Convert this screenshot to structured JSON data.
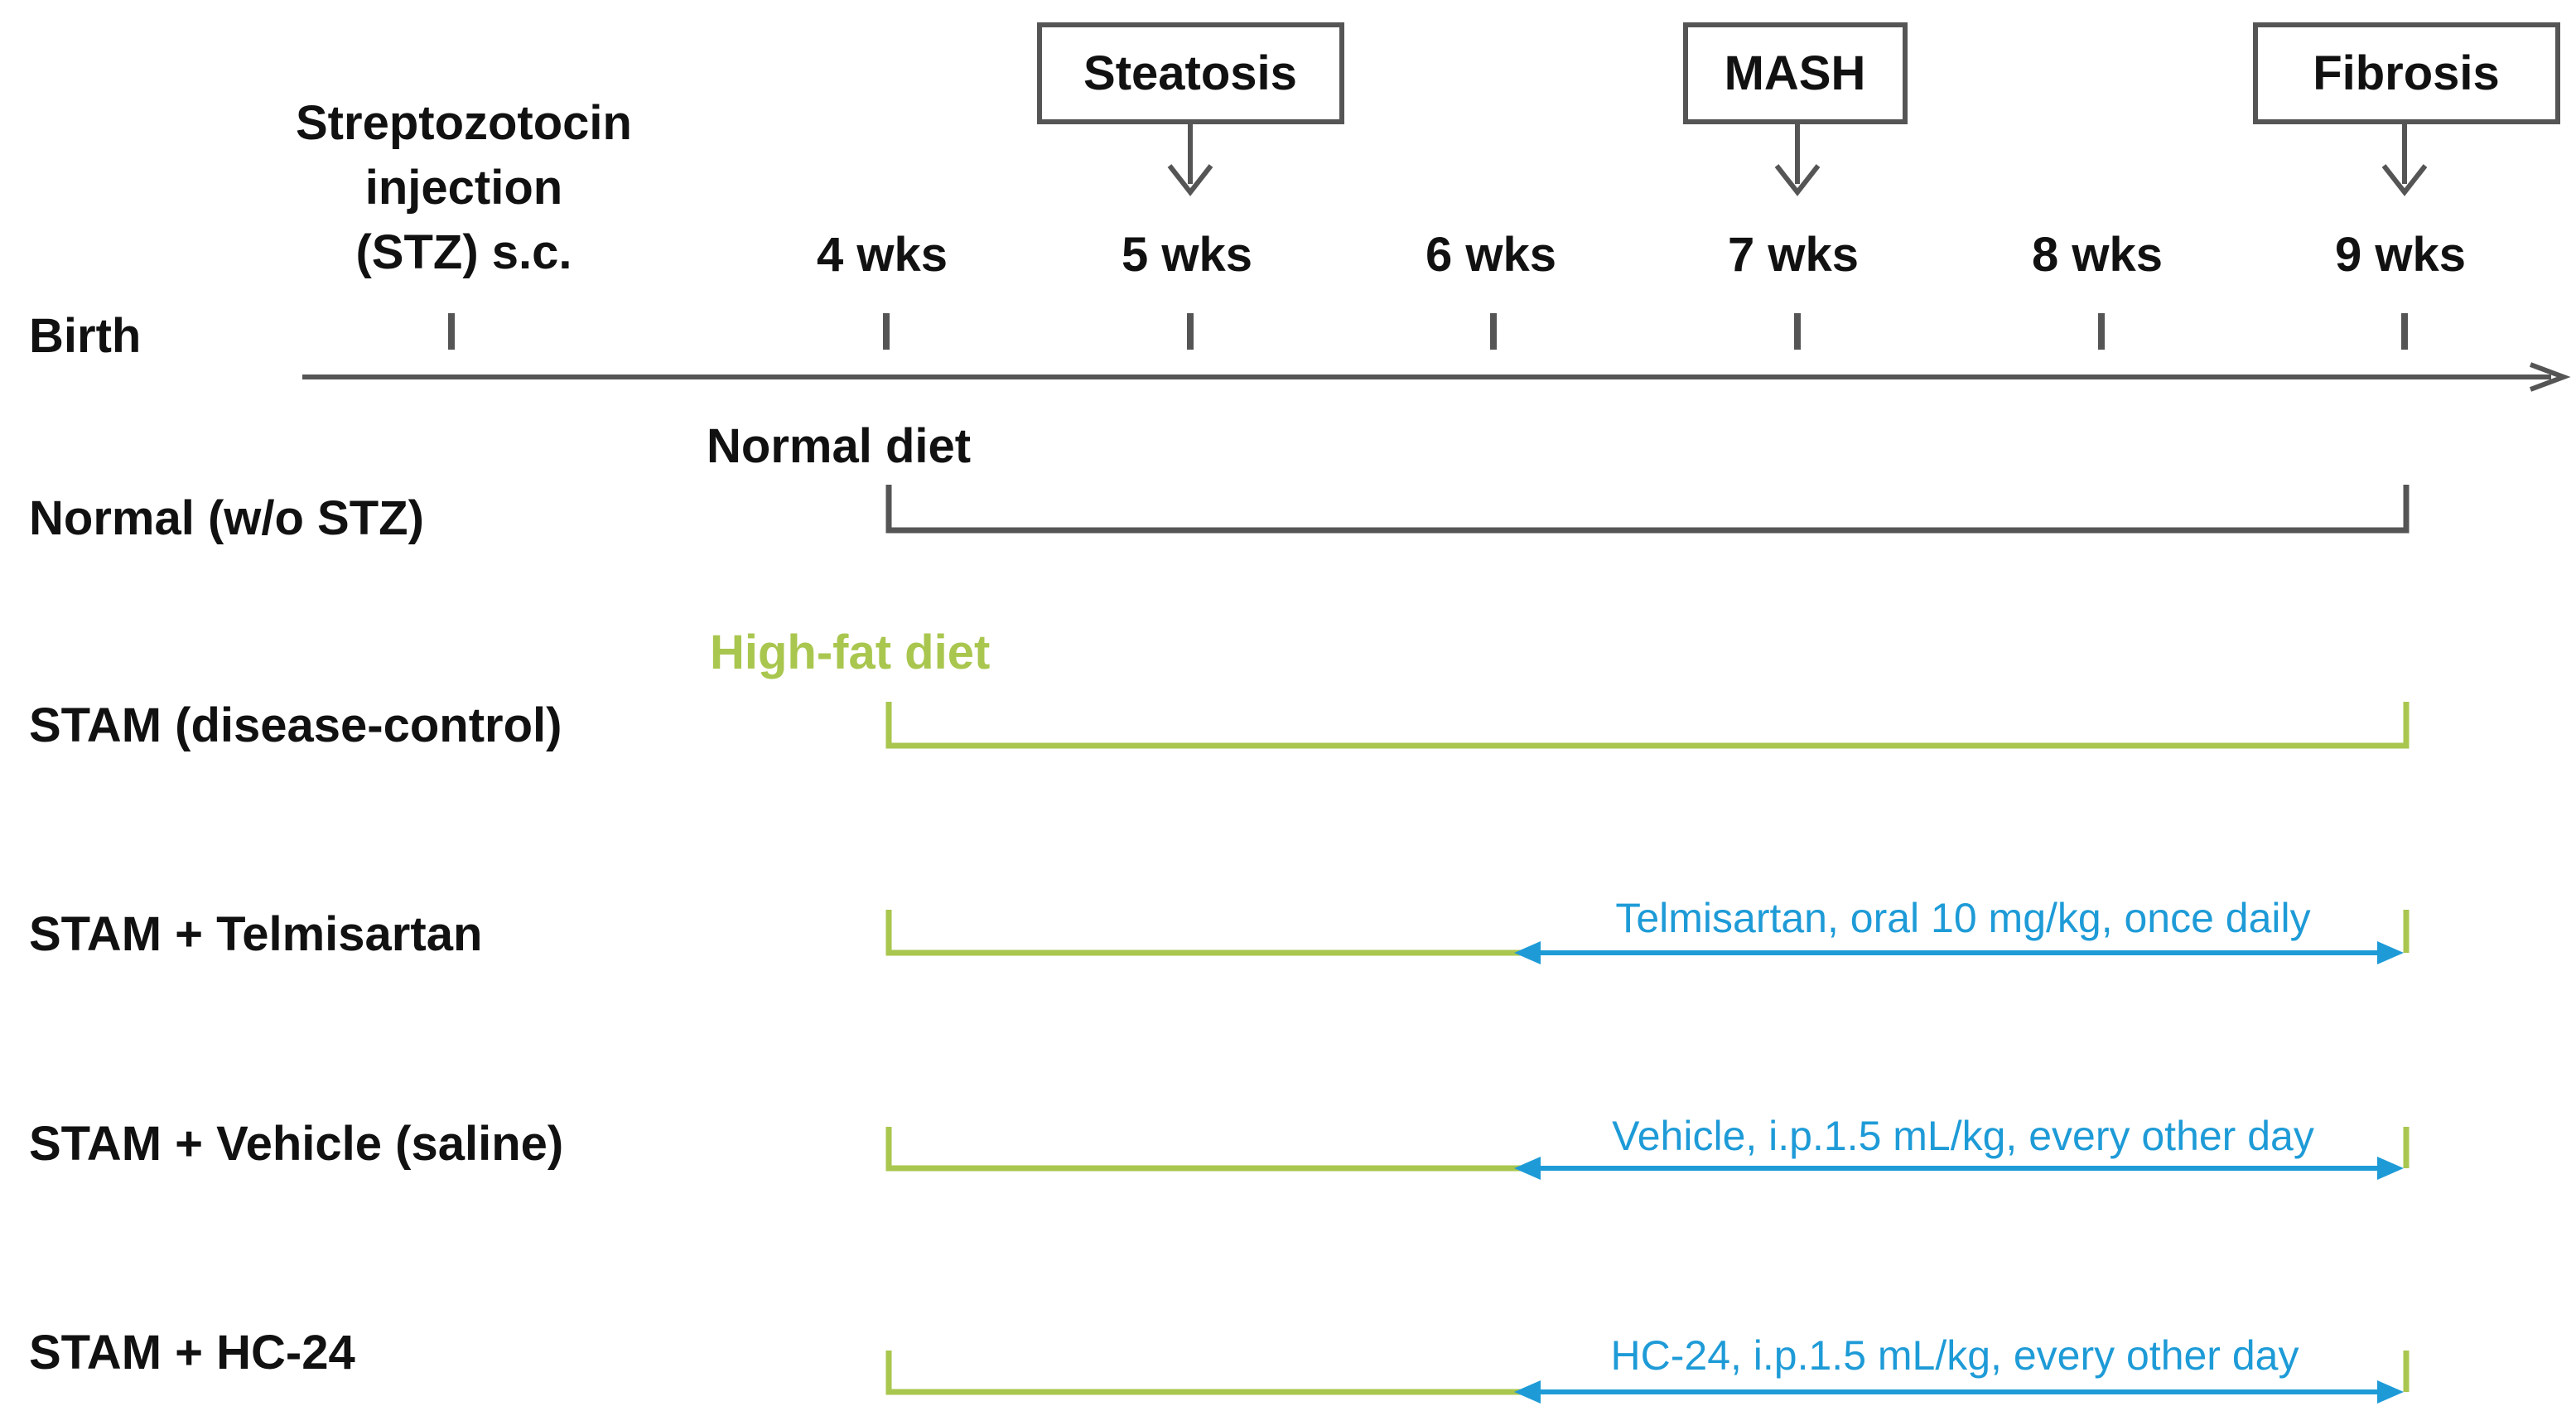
{
  "timeline": {
    "birth_label": "Birth",
    "stz_label_lines": [
      "Streptozotocin",
      "injection",
      "(STZ) s.c."
    ],
    "week_labels": [
      "4 wks",
      "5 wks",
      "6 wks",
      "7 wks",
      "8 wks",
      "9 wks"
    ]
  },
  "stages": [
    {
      "label": "Steatosis",
      "week": "5 wks"
    },
    {
      "label": "MASH",
      "week": "7 wks"
    },
    {
      "label": "Fibrosis",
      "week": "9 wks"
    }
  ],
  "diets": {
    "normal": "Normal diet",
    "high_fat": "High-fat diet"
  },
  "groups": [
    {
      "label": "Normal (w/o STZ)"
    },
    {
      "label": "STAM (disease-control)"
    },
    {
      "label": "STAM + Telmisartan",
      "treatment": "Telmisartan, oral 10 mg/kg, once daily"
    },
    {
      "label": "STAM + Vehicle (saline)",
      "treatment": "Vehicle, i.p.1.5 mL/kg, every other day"
    },
    {
      "label": "STAM + HC-24",
      "treatment": "HC-24, i.p.1.5 mL/kg, every other day"
    }
  ],
  "colors": {
    "axis": "#555555",
    "normal_diet": "#555555",
    "high_fat_diet": "#a9c64e",
    "treatment": "#1e9bd7",
    "text": "#111111"
  }
}
